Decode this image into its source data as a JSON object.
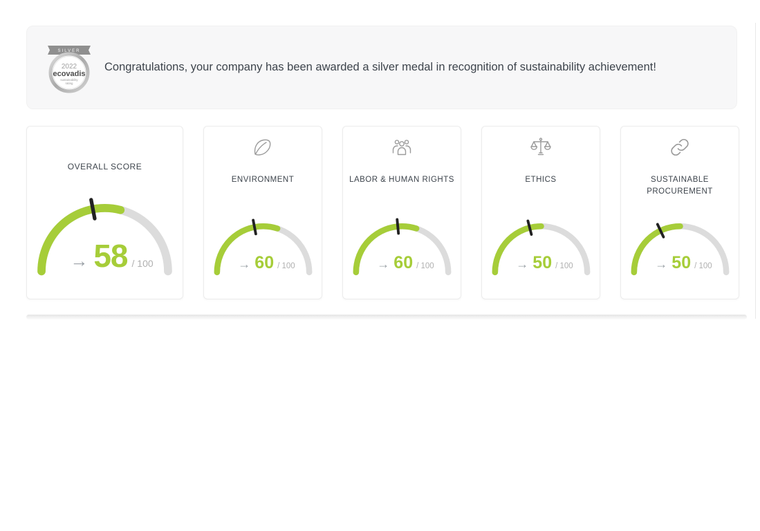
{
  "banner": {
    "message": "Congratulations, your company has been awarded a silver medal in recognition of sustainability achievement!",
    "medal": {
      "ribbon": "SILVER",
      "year": "2022",
      "brand": "ecovadis",
      "tagline_line1": "sustainability",
      "tagline_line2": "rating"
    }
  },
  "score_arrow": "→",
  "cards": [
    {
      "label": "OVERALL SCORE",
      "icon": null,
      "value": 58,
      "max": 100,
      "max_label": "/ 100",
      "needle": 44
    },
    {
      "label": "ENVIRONMENT",
      "icon": "leaf-icon",
      "value": 60,
      "max": 100,
      "max_label": "/ 100",
      "needle": 44
    },
    {
      "label": "LABOR & HUMAN RIGHTS",
      "icon": "people-group-icon",
      "value": 60,
      "max": 100,
      "max_label": "/ 100",
      "needle": 47
    },
    {
      "label": "ETHICS",
      "icon": "scales-icon",
      "value": 50,
      "max": 100,
      "max_label": "/ 100",
      "needle": 42
    },
    {
      "label": "SUSTAINABLE PROCUREMENT",
      "icon": "chain-link-icon",
      "value": 50,
      "max": 100,
      "max_label": "/ 100",
      "needle": 36
    }
  ],
  "colors": {
    "gauge_fill": "#a6cd39",
    "gauge_track": "#dcdcdc",
    "needle": "#222222",
    "text": "#3d444c",
    "muted": "#b0b0b0",
    "arrow": "#9aa0a6",
    "icon": "#9b9b9b",
    "banner_bg": "#f7f7f8"
  }
}
